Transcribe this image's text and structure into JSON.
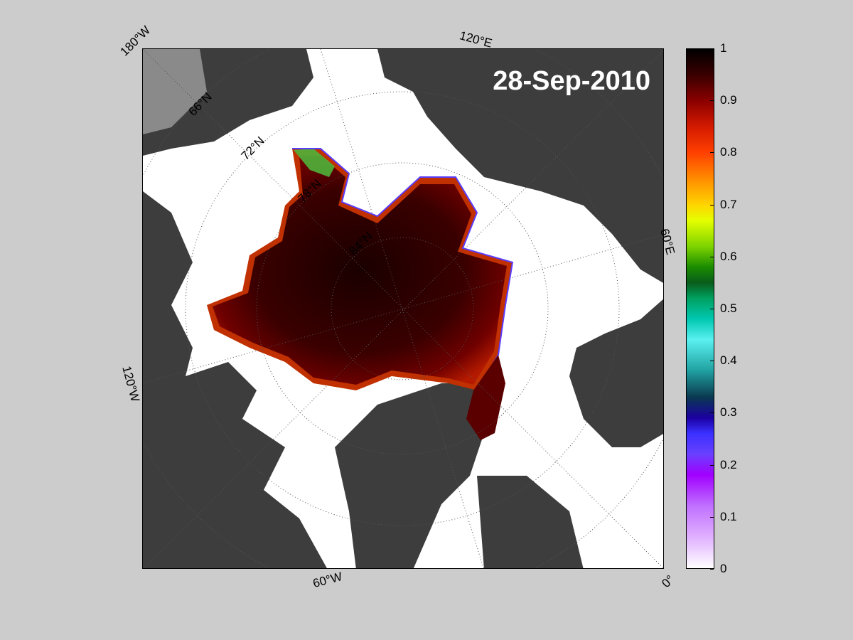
{
  "map": {
    "date": "28-Sep-2010",
    "longitude_labels": [
      "180°W",
      "120°E",
      "60°E",
      "0°",
      "60°W",
      "120°W"
    ],
    "latitude_labels": [
      "66°N",
      "72°N",
      "78°N",
      "84°N"
    ],
    "colors": {
      "background": "#cccccc",
      "ocean": "#ffffff",
      "land": "#3d3d3d",
      "land_light": "#8a8a8a",
      "ice": "#3a0000"
    }
  },
  "colorbar": {
    "ticks": [
      "1",
      "0.9",
      "0.8",
      "0.7",
      "0.6",
      "0.5",
      "0.4",
      "0.3",
      "0.2",
      "0.1",
      "0"
    ],
    "range": [
      0,
      1
    ]
  }
}
